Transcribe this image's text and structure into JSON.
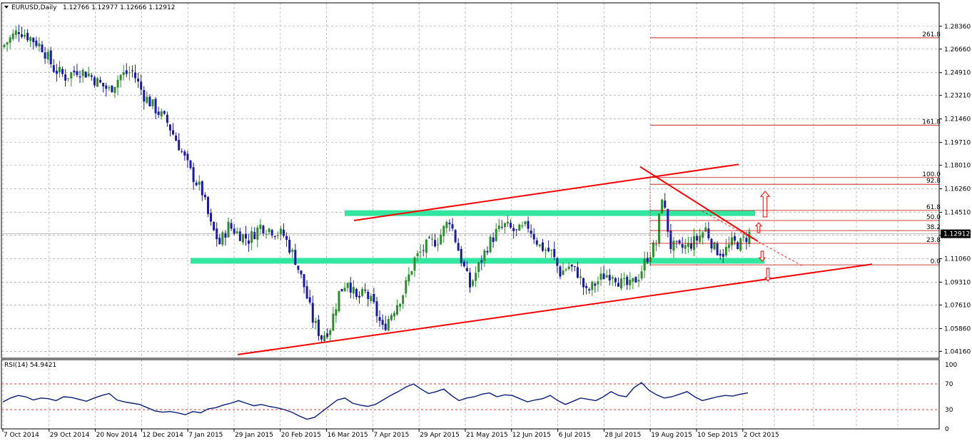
{
  "header": {
    "symbol": "EURUSD,Daily",
    "ohlc": "1.12766 1.12977 1.12666 1.12912"
  },
  "rsi_header": "RSI(14) 54.9421",
  "current_price_label": "1.12912",
  "colors": {
    "bull": "#2e8b2e",
    "bear": "#1a1aa0",
    "trend": "#ff0000",
    "zone": "#33e6a0",
    "fib": "#c00000",
    "rsi": "#0a1e78",
    "grid": "#9a9a9a"
  },
  "chart_data": [
    {
      "type": "candlestick",
      "price_axis": {
        "ylim": [
          1.0365,
          1.301
        ],
        "ticks": [
          "1.28360",
          "1.26660",
          "1.24910",
          "1.23210",
          "1.21460",
          "1.19710",
          "1.18010",
          "1.16260",
          "1.14510",
          "1.12810",
          "1.11060",
          "1.09310",
          "1.07610",
          "1.05860",
          "1.04160"
        ]
      },
      "x_axis": {
        "tick_labels": [
          "7 Oct 2014",
          "29 Oct 2014",
          "20 Nov 2014",
          "12 Dec 2014",
          "7 Jan 2015",
          "29 Jan 2015",
          "20 Feb 2015",
          "16 Mar 2015",
          "7 Apr 2015",
          "29 Apr 2015",
          "21 May 2015",
          "12 Jun 2015",
          "6 Jul 2015",
          "28 Jul 2015",
          "19 Aug 2015",
          "10 Sep 2015",
          "2 Oct 2015"
        ]
      },
      "close_path": [
        [
          0,
          1.27
        ],
        [
          5,
          1.281
        ],
        [
          9,
          1.275
        ],
        [
          13,
          1.268
        ],
        [
          17,
          1.252
        ],
        [
          21,
          1.246
        ],
        [
          25,
          1.251
        ],
        [
          29,
          1.248
        ],
        [
          32,
          1.242
        ],
        [
          36,
          1.236
        ],
        [
          40,
          1.247
        ],
        [
          44,
          1.25
        ],
        [
          48,
          1.232
        ],
        [
          52,
          1.222
        ],
        [
          56,
          1.212
        ],
        [
          60,
          1.195
        ],
        [
          64,
          1.175
        ],
        [
          68,
          1.16
        ],
        [
          71,
          1.135
        ],
        [
          74,
          1.122
        ],
        [
          77,
          1.135
        ],
        [
          80,
          1.13
        ],
        [
          84,
          1.125
        ],
        [
          88,
          1.135
        ],
        [
          92,
          1.132
        ],
        [
          96,
          1.128
        ],
        [
          100,
          1.11
        ],
        [
          103,
          1.09
        ],
        [
          106,
          1.065
        ],
        [
          109,
          1.052
        ],
        [
          112,
          1.06
        ],
        [
          115,
          1.085
        ],
        [
          118,
          1.095
        ],
        [
          121,
          1.08
        ],
        [
          124,
          1.085
        ],
        [
          127,
          1.075
        ],
        [
          130,
          1.058
        ],
        [
          133,
          1.07
        ],
        [
          137,
          1.085
        ],
        [
          141,
          1.11
        ],
        [
          145,
          1.12
        ],
        [
          149,
          1.125
        ],
        [
          153,
          1.14
        ],
        [
          157,
          1.11
        ],
        [
          160,
          1.09
        ],
        [
          163,
          1.105
        ],
        [
          166,
          1.12
        ],
        [
          169,
          1.13
        ],
        [
          172,
          1.135
        ],
        [
          176,
          1.13
        ],
        [
          180,
          1.135
        ],
        [
          184,
          1.12
        ],
        [
          188,
          1.115
        ],
        [
          191,
          1.1
        ],
        [
          194,
          1.105
        ],
        [
          197,
          1.1
        ],
        [
          200,
          1.085
        ],
        [
          203,
          1.092
        ],
        [
          206,
          1.098
        ],
        [
          209,
          1.1
        ],
        [
          212,
          1.092
        ],
        [
          215,
          1.09
        ],
        [
          218,
          1.098
        ],
        [
          221,
          1.112
        ],
        [
          224,
          1.122
        ],
        [
          226,
          1.158
        ],
        [
          229,
          1.12
        ],
        [
          232,
          1.118
        ],
        [
          235,
          1.12
        ],
        [
          238,
          1.125
        ],
        [
          241,
          1.133
        ],
        [
          244,
          1.118
        ],
        [
          247,
          1.115
        ],
        [
          250,
          1.122
        ],
        [
          253,
          1.122
        ],
        [
          256,
          1.129
        ]
      ],
      "levels": {
        "support_zone": 1.109,
        "resistance_zone": 1.1445
      },
      "fibonacci": [
        {
          "label": "261.8",
          "price": 1.275
        },
        {
          "label": "161.8",
          "price": 1.21
        },
        {
          "label": "100.0",
          "price": 1.171
        },
        {
          "label": "92.8",
          "price": 1.166
        },
        {
          "label": "61.8",
          "price": 1.1465
        },
        {
          "label": "50.0",
          "price": 1.139
        },
        {
          "label": "38.2",
          "price": 1.1315
        },
        {
          "label": "23.8",
          "price": 1.122
        },
        {
          "label": "0.0",
          "price": 1.106
        }
      ]
    },
    {
      "type": "line",
      "name": "RSI(14)",
      "ylim": [
        0,
        100
      ],
      "ticks": [
        "100",
        "70",
        "30",
        "0"
      ],
      "levels": [
        70,
        30
      ],
      "values": [
        42,
        48,
        52,
        50,
        45,
        48,
        47,
        44,
        50,
        49,
        46,
        43,
        48,
        52,
        55,
        45,
        42,
        40,
        38,
        33,
        28,
        26,
        27,
        25,
        22,
        27,
        25,
        31,
        33,
        37,
        40,
        44,
        40,
        36,
        38,
        35,
        33,
        30,
        26,
        20,
        15,
        18,
        27,
        36,
        45,
        48,
        40,
        37,
        35,
        38,
        45,
        52,
        58,
        65,
        70,
        62,
        55,
        58,
        62,
        52,
        44,
        48,
        50,
        54,
        56,
        50,
        53,
        52,
        47,
        42,
        45,
        47,
        52,
        44,
        38,
        43,
        48,
        46,
        44,
        50,
        58,
        52,
        50,
        64,
        72,
        60,
        53,
        48,
        50,
        54,
        58,
        50,
        44,
        47,
        50,
        52,
        51,
        54,
        56
      ]
    }
  ]
}
